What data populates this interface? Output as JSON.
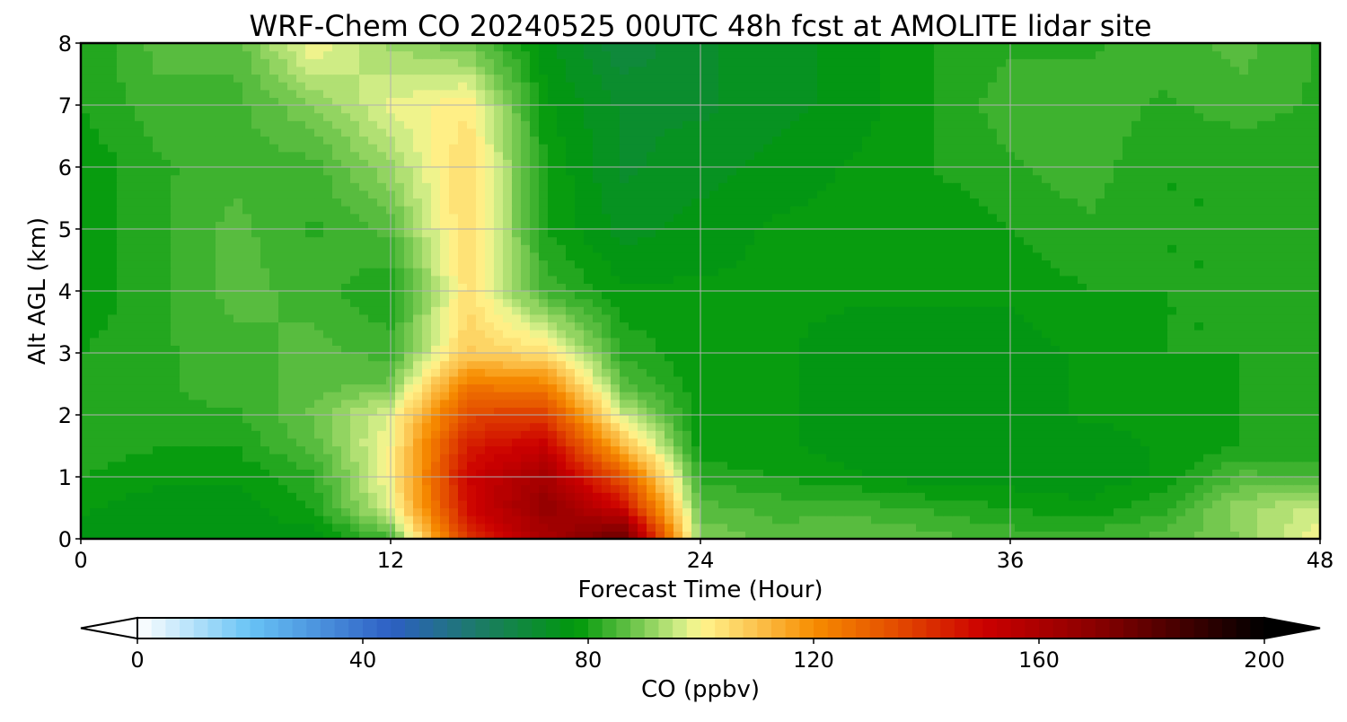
{
  "chart_data": {
    "type": "heatmap",
    "title": "WRF-Chem CO  20240525 00UTC 48h fcst at AMOLITE lidar site",
    "xlabel": "Forecast Time (Hour)",
    "ylabel": "Alt AGL (km)",
    "xlim": [
      0,
      48
    ],
    "ylim": [
      0,
      8
    ],
    "xticks": [
      "0",
      "12",
      "24",
      "36",
      "48"
    ],
    "yticks": [
      "0",
      "1",
      "2",
      "3",
      "4",
      "5",
      "6",
      "7",
      "8"
    ],
    "grid": true,
    "x": [
      0,
      3,
      6,
      9,
      12,
      15,
      18,
      21,
      24,
      27,
      30,
      33,
      36,
      39,
      42,
      45,
      48
    ],
    "y": [
      0,
      0.5,
      1,
      1.5,
      2,
      2.5,
      3,
      4,
      5,
      6,
      7,
      8
    ],
    "z": [
      [
        76,
        76,
        76,
        76,
        84,
        140,
        160,
        180,
        90,
        86,
        88,
        86,
        84,
        84,
        86,
        90,
        100
      ],
      [
        78,
        76,
        76,
        80,
        98,
        148,
        168,
        150,
        86,
        84,
        84,
        82,
        80,
        78,
        82,
        92,
        96
      ],
      [
        80,
        78,
        78,
        82,
        100,
        150,
        162,
        132,
        82,
        80,
        78,
        76,
        76,
        76,
        78,
        86,
        84
      ],
      [
        82,
        80,
        80,
        86,
        100,
        145,
        152,
        112,
        78,
        78,
        76,
        76,
        76,
        76,
        78,
        80,
        80
      ],
      [
        82,
        82,
        82,
        88,
        98,
        136,
        138,
        96,
        78,
        78,
        76,
        76,
        76,
        78,
        78,
        80,
        80
      ],
      [
        82,
        82,
        84,
        86,
        88,
        124,
        122,
        86,
        78,
        78,
        76,
        76,
        76,
        78,
        78,
        80,
        80
      ],
      [
        80,
        82,
        84,
        86,
        84,
        108,
        104,
        82,
        78,
        78,
        76,
        76,
        76,
        78,
        80,
        80,
        80
      ],
      [
        78,
        82,
        86,
        84,
        80,
        104,
        84,
        78,
        78,
        78,
        78,
        78,
        78,
        80,
        80,
        80,
        80
      ],
      [
        78,
        82,
        86,
        82,
        86,
        106,
        80,
        74,
        76,
        78,
        78,
        78,
        80,
        82,
        80,
        80,
        80
      ],
      [
        78,
        82,
        84,
        84,
        92,
        106,
        80,
        72,
        74,
        76,
        78,
        80,
        82,
        84,
        80,
        80,
        80
      ],
      [
        80,
        84,
        84,
        90,
        98,
        102,
        78,
        72,
        72,
        74,
        76,
        80,
        84,
        84,
        82,
        84,
        82
      ],
      [
        80,
        86,
        86,
        100,
        92,
        88,
        76,
        68,
        72,
        74,
        76,
        80,
        82,
        82,
        84,
        86,
        82
      ]
    ],
    "colorbar": {
      "label": "CO  (ppbv)",
      "min": 0,
      "max": 200,
      "ticks": [
        "0",
        "40",
        "80",
        "120",
        "160",
        "200"
      ],
      "extend": "both",
      "stops": [
        {
          "v": 0,
          "c": "#ffffff"
        },
        {
          "v": 20,
          "c": "#68c3f5"
        },
        {
          "v": 45,
          "c": "#2d5fc4"
        },
        {
          "v": 60,
          "c": "#1d7a6a"
        },
        {
          "v": 78,
          "c": "#00990a"
        },
        {
          "v": 88,
          "c": "#6bc44a"
        },
        {
          "v": 97,
          "c": "#d8f08a"
        },
        {
          "v": 100,
          "c": "#fff58e"
        },
        {
          "v": 110,
          "c": "#fcc24d"
        },
        {
          "v": 120,
          "c": "#f78d00"
        },
        {
          "v": 135,
          "c": "#e34a00"
        },
        {
          "v": 150,
          "c": "#cc0000"
        },
        {
          "v": 170,
          "c": "#8a0000"
        },
        {
          "v": 200,
          "c": "#000000"
        }
      ]
    }
  }
}
